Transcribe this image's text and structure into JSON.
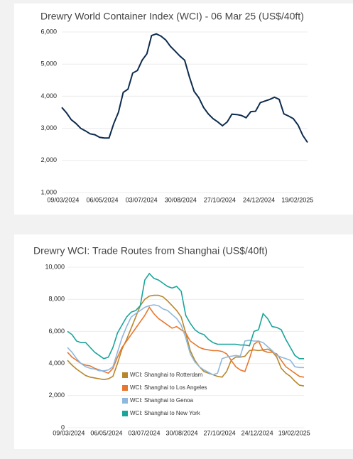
{
  "chart_data": [
    {
      "type": "line",
      "title": "Drewry World Container Index (WCI) - 06 Mar 25 (US$/40ft)",
      "x": [
        "2024-03-07",
        "2024-03-14",
        "2024-03-21",
        "2024-03-28",
        "2024-04-04",
        "2024-04-11",
        "2024-04-18",
        "2024-04-25",
        "2024-05-02",
        "2024-05-09",
        "2024-05-16",
        "2024-05-23",
        "2024-05-30",
        "2024-06-06",
        "2024-06-13",
        "2024-06-20",
        "2024-06-27",
        "2024-07-04",
        "2024-07-11",
        "2024-07-18",
        "2024-07-25",
        "2024-08-01",
        "2024-08-08",
        "2024-08-15",
        "2024-08-22",
        "2024-08-29",
        "2024-09-05",
        "2024-09-12",
        "2024-09-19",
        "2024-09-26",
        "2024-10-03",
        "2024-10-10",
        "2024-10-17",
        "2024-10-24",
        "2024-10-31",
        "2024-11-07",
        "2024-11-14",
        "2024-11-21",
        "2024-11-28",
        "2024-12-05",
        "2024-12-12",
        "2024-12-19",
        "2024-12-26",
        "2025-01-02",
        "2025-01-09",
        "2025-01-16",
        "2025-01-23",
        "2025-01-30",
        "2025-02-06",
        "2025-02-13",
        "2025-02-20",
        "2025-02-27",
        "2025-03-06"
      ],
      "series": [
        {
          "color": "#0d2b4e",
          "values": [
            3650,
            3480,
            3270,
            3150,
            3000,
            2920,
            2830,
            2800,
            2720,
            2700,
            2700,
            3150,
            3500,
            4120,
            4220,
            4720,
            4800,
            5120,
            5320,
            5890,
            5940,
            5870,
            5750,
            5550,
            5400,
            5250,
            5120,
            4600,
            4150,
            3950,
            3650,
            3450,
            3300,
            3200,
            3080,
            3200,
            3440,
            3430,
            3400,
            3330,
            3520,
            3530,
            3800,
            3850,
            3900,
            3970,
            3900,
            3450,
            3380,
            3300,
            3100,
            2780,
            2560
          ]
        }
      ],
      "xlim": [
        "2024-03-07",
        "2025-03-06"
      ],
      "xticks": [
        {
          "value": "2024-03-09",
          "label": "09/03/2024"
        },
        {
          "value": "2024-05-06",
          "label": "06/05/2024"
        },
        {
          "value": "2024-07-03",
          "label": "03/07/2024"
        },
        {
          "value": "2024-08-30",
          "label": "30/08/2024"
        },
        {
          "value": "2024-10-27",
          "label": "27/10/2024"
        },
        {
          "value": "2024-12-24",
          "label": "24/12/2024"
        },
        {
          "value": "2025-02-19",
          "label": "19/02/2025"
        }
      ],
      "ylim": [
        1000,
        6000
      ],
      "yticks": [
        {
          "value": 1000,
          "label": "1,000"
        },
        {
          "value": 2000,
          "label": "2,000"
        },
        {
          "value": 3000,
          "label": "3,000"
        },
        {
          "value": 4000,
          "label": "4,000"
        },
        {
          "value": 5000,
          "label": "5,000"
        },
        {
          "value": 6000,
          "label": "6,000"
        }
      ],
      "grid": true
    },
    {
      "type": "line",
      "title": "Drewry WCI: Trade Routes from Shanghai (US$/40ft)",
      "x": [
        "2024-03-07",
        "2024-03-14",
        "2024-03-21",
        "2024-03-28",
        "2024-04-04",
        "2024-04-11",
        "2024-04-18",
        "2024-04-25",
        "2024-05-02",
        "2024-05-09",
        "2024-05-16",
        "2024-05-23",
        "2024-05-30",
        "2024-06-06",
        "2024-06-13",
        "2024-06-20",
        "2024-06-27",
        "2024-07-04",
        "2024-07-11",
        "2024-07-18",
        "2024-07-25",
        "2024-08-01",
        "2024-08-08",
        "2024-08-15",
        "2024-08-22",
        "2024-08-29",
        "2024-09-05",
        "2024-09-12",
        "2024-09-19",
        "2024-09-26",
        "2024-10-03",
        "2024-10-10",
        "2024-10-17",
        "2024-10-24",
        "2024-10-31",
        "2024-11-07",
        "2024-11-14",
        "2024-11-21",
        "2024-11-28",
        "2024-12-05",
        "2024-12-12",
        "2024-12-19",
        "2024-12-26",
        "2025-01-02",
        "2025-01-09",
        "2025-01-16",
        "2025-01-23",
        "2025-01-30",
        "2025-02-06",
        "2025-02-13",
        "2025-02-20",
        "2025-02-27",
        "2025-03-06"
      ],
      "series": [
        {
          "name": "WCI: Shanghai to Rotterdam",
          "color": "#b8862b",
          "values": [
            4200,
            3900,
            3650,
            3450,
            3250,
            3150,
            3100,
            3050,
            3000,
            3050,
            3200,
            4000,
            4900,
            5500,
            6200,
            6900,
            7600,
            8000,
            8200,
            8250,
            8250,
            8150,
            7900,
            7600,
            7300,
            6900,
            5900,
            4800,
            4200,
            3800,
            3500,
            3400,
            3300,
            3200,
            3150,
            3500,
            4200,
            4400,
            4400,
            4450,
            4800,
            4850,
            4800,
            4850,
            4900,
            4750,
            4400,
            3700,
            3400,
            3200,
            2900,
            2650,
            2600
          ]
        },
        {
          "name": "WCI: Shanghai to Los Angeles",
          "color": "#e8772e",
          "values": [
            4700,
            4400,
            4200,
            4000,
            3900,
            3850,
            3700,
            3600,
            3500,
            3400,
            3700,
            4400,
            5000,
            5400,
            5800,
            6200,
            6600,
            7000,
            7500,
            7100,
            6800,
            6600,
            6400,
            6200,
            6300,
            6100,
            5900,
            5400,
            5200,
            5000,
            4900,
            4850,
            4800,
            4800,
            4750,
            4600,
            4200,
            3800,
            3600,
            3500,
            4300,
            5200,
            5400,
            4800,
            4700,
            4700,
            4600,
            4200,
            3800,
            3600,
            3400,
            3200,
            3150
          ]
        },
        {
          "name": "WCI: Shanghai to Genoa",
          "color": "#8fb8dc",
          "values": [
            5000,
            4700,
            4300,
            4000,
            3800,
            3700,
            3650,
            3550,
            3550,
            3600,
            3800,
            4700,
            5600,
            6300,
            6900,
            7100,
            7300,
            7500,
            7600,
            7650,
            7600,
            7400,
            7300,
            7050,
            6800,
            6400,
            5600,
            4600,
            4100,
            3800,
            3600,
            3450,
            3300,
            3400,
            4300,
            4400,
            4450,
            4500,
            4450,
            5400,
            5450,
            5400,
            5400,
            5300,
            5050,
            4800,
            4500,
            4400,
            4300,
            4200,
            3800,
            3750,
            3750
          ]
        },
        {
          "name": "WCI: Shanghai to New York",
          "color": "#1aa59a",
          "values": [
            6000,
            5800,
            5400,
            5300,
            5300,
            5000,
            4700,
            4500,
            4300,
            4400,
            5000,
            5900,
            6400,
            6900,
            7200,
            7300,
            7600,
            9200,
            9600,
            9300,
            9200,
            9000,
            8800,
            8700,
            8800,
            8500,
            7000,
            6500,
            6100,
            5900,
            5800,
            5500,
            5300,
            5200,
            5200,
            5200,
            5200,
            5200,
            5150,
            5150,
            5100,
            6000,
            6100,
            7100,
            6800,
            6300,
            6250,
            6100,
            5500,
            5000,
            4500,
            4300,
            4300
          ]
        }
      ],
      "xlim": [
        "2024-03-07",
        "2025-03-06"
      ],
      "xticks": [
        {
          "value": "2024-03-09",
          "label": "09/03/2024"
        },
        {
          "value": "2024-05-06",
          "label": "06/05/2024"
        },
        {
          "value": "2024-07-03",
          "label": "03/07/2024"
        },
        {
          "value": "2024-08-30",
          "label": "30/08/2024"
        },
        {
          "value": "2024-10-27",
          "label": "27/10/2024"
        },
        {
          "value": "2024-12-24",
          "label": "24/12/2024"
        },
        {
          "value": "2025-02-19",
          "label": "19/02/2025"
        }
      ],
      "ylim": [
        0,
        10000
      ],
      "yticks": [
        0,
        {
          "value": 2000,
          "label": "2,000"
        },
        {
          "value": 4000,
          "label": "4,000"
        },
        {
          "value": 6000,
          "label": "6,000"
        },
        {
          "value": 8000,
          "label": "8,000"
        },
        {
          "value": 10000,
          "label": "10,000"
        }
      ],
      "grid": true,
      "legend": "lower-left"
    }
  ]
}
